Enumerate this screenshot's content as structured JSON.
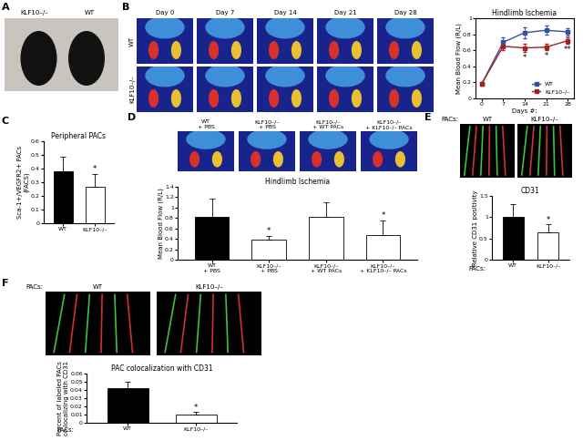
{
  "panel_labels": [
    "A",
    "B",
    "C",
    "D",
    "E",
    "F"
  ],
  "A": {
    "image_labels": [
      "KLF10–/–",
      "WT"
    ]
  },
  "B": {
    "row_labels": [
      "WT",
      "KLF10–/–"
    ],
    "column_labels": [
      "Day 0",
      "Day 7",
      "Day 14",
      "Day 21",
      "Day 28"
    ]
  },
  "D": {
    "image_labels": [
      "WT\n+ PBS",
      "KLF10–/–\n+ PBS",
      "KLF10–/–\n+ WT PACs",
      "KLF10–/–\n+ KLF10–/– PACs"
    ]
  },
  "E": {
    "image_header": "PACs:",
    "image_labels": [
      "WT",
      "KLF10–/–"
    ]
  },
  "F": {
    "image_header": "PACs:",
    "image_labels": [
      "WT",
      "KLF10–/–"
    ]
  },
  "chart_data": [
    {
      "type": "line",
      "title": "Hindlimb Ischemia",
      "xlabel": "Days #:",
      "ylabel": "Mean Blood Flow (R/L)",
      "x": [
        0,
        7,
        14,
        21,
        28
      ],
      "series": [
        {
          "name": "WT",
          "color": "#2f4fa8",
          "marker": "square",
          "values": [
            0.18,
            0.7,
            0.82,
            0.85,
            0.83
          ],
          "errors": [
            0.01,
            0.06,
            0.07,
            0.06,
            0.05
          ]
        },
        {
          "name": "KLF10–/–",
          "color": "#a3201e",
          "marker": "square",
          "values": [
            0.18,
            0.65,
            0.63,
            0.64,
            0.72
          ],
          "errors": [
            0.01,
            0.05,
            0.05,
            0.04,
            0.04
          ],
          "significance": [
            null,
            null,
            "*",
            "*",
            "**"
          ]
        }
      ],
      "xlim": [
        -2,
        30
      ],
      "xticks": [
        0,
        7,
        14,
        21,
        28
      ],
      "ylim": [
        0,
        1
      ],
      "yticks": [
        0,
        0.2,
        0.4,
        0.6,
        0.8,
        1
      ],
      "legend": "lower right"
    },
    {
      "type": "bar",
      "title": "Peripheral PACs",
      "ylabel": "Sca-1+/VEGFR2+ PACs\n(FACS)",
      "categories": [
        "WT",
        "KLF10–/–"
      ],
      "values": [
        0.38,
        0.27
      ],
      "errors": [
        0.11,
        0.09
      ],
      "significance": [
        null,
        "*"
      ],
      "colors": [
        "#000000",
        "#ffffff"
      ],
      "ylim": [
        0,
        0.6
      ],
      "yticks": [
        0,
        0.1,
        0.2,
        0.3,
        0.4,
        0.5,
        0.6
      ]
    },
    {
      "type": "bar",
      "title": "Hindlimb Ischemia",
      "ylabel": "Mean Blood Flow (R/L)",
      "categories": [
        "WT\n+ PBS",
        "KLF10–/–\n+ PBS",
        "KLF10–/–\n+ WT PACs",
        "KLF10–/–\n+ KLF10–/– PACs"
      ],
      "values": [
        0.82,
        0.38,
        0.83,
        0.48
      ],
      "errors": [
        0.36,
        0.07,
        0.28,
        0.28
      ],
      "significance": [
        null,
        "*",
        null,
        "*"
      ],
      "colors": [
        "#000000",
        "#ffffff",
        "#ffffff",
        "#ffffff"
      ],
      "ylim": [
        0,
        1.4
      ],
      "yticks": [
        0,
        0.2,
        0.4,
        0.6,
        0.8,
        1,
        1.2,
        1.4
      ]
    },
    {
      "type": "bar",
      "title": "CD31",
      "ylabel": "Relative CD31 positivity",
      "xlabel": "PACs:",
      "categories": [
        "WT",
        "KLF10–/–"
      ],
      "values": [
        1.0,
        0.65
      ],
      "errors": [
        0.3,
        0.18
      ],
      "significance": [
        null,
        "*"
      ],
      "colors": [
        "#000000",
        "#ffffff"
      ],
      "ylim": [
        0,
        1.5
      ],
      "yticks": [
        0,
        0.5,
        1,
        1.5
      ]
    },
    {
      "type": "bar",
      "title": "PAC colocalization with CD31",
      "ylabel": "Percent of labeled PACs\nco-localizing with CD31",
      "xlabel": "PACs:",
      "categories": [
        "WT",
        "KLF10–/–"
      ],
      "values": [
        0.042,
        0.01
      ],
      "errors": [
        0.008,
        0.003
      ],
      "significance": [
        null,
        "*"
      ],
      "colors": [
        "#000000",
        "#ffffff"
      ],
      "ylim": [
        0,
        0.06
      ],
      "yticks": [
        0,
        0.01,
        0.02,
        0.03,
        0.04,
        0.05,
        0.06
      ]
    }
  ]
}
